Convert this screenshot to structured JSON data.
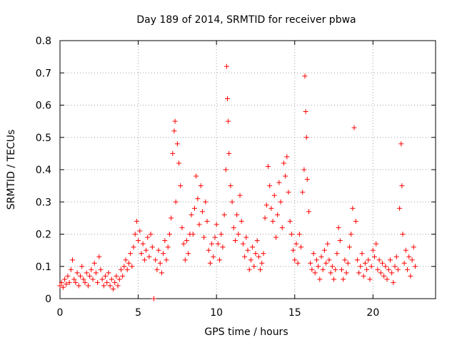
{
  "chart_data": {
    "type": "scatter",
    "title": "Day 189 of 2014, SRMTID for receiver pbwa",
    "xlabel": "GPS time / hours",
    "ylabel": "SRMTID / TECUs",
    "xlim": [
      0,
      24
    ],
    "ylim": [
      0,
      0.8
    ],
    "x_ticks": [
      0,
      5,
      10,
      15,
      20
    ],
    "y_ticks": [
      0,
      0.1,
      0.2,
      0.3,
      0.4,
      0.5,
      0.6,
      0.7,
      0.8
    ],
    "x_tick_labels": [
      "0",
      "5",
      "10",
      "15",
      "20"
    ],
    "y_tick_labels": [
      "0",
      "0.1",
      "0.2",
      "0.3",
      "0.4",
      "0.5",
      "0.6",
      "0.7",
      "0.8"
    ],
    "grid": true,
    "marker": "+",
    "color": "#ff0000",
    "series": [
      {
        "name": "SRMTID",
        "points": [
          [
            0.0,
            0.04
          ],
          [
            0.1,
            0.05
          ],
          [
            0.2,
            0.035
          ],
          [
            0.3,
            0.06
          ],
          [
            0.4,
            0.045
          ],
          [
            0.5,
            0.07
          ],
          [
            0.6,
            0.05
          ],
          [
            0.7,
            0.09
          ],
          [
            0.8,
            0.12
          ],
          [
            0.9,
            0.06
          ],
          [
            1.0,
            0.05
          ],
          [
            1.1,
            0.08
          ],
          [
            1.2,
            0.04
          ],
          [
            1.3,
            0.07
          ],
          [
            1.4,
            0.1
          ],
          [
            1.5,
            0.06
          ],
          [
            1.6,
            0.05
          ],
          [
            1.7,
            0.08
          ],
          [
            1.8,
            0.04
          ],
          [
            1.9,
            0.07
          ],
          [
            2.0,
            0.09
          ],
          [
            2.1,
            0.06
          ],
          [
            2.2,
            0.11
          ],
          [
            2.3,
            0.08
          ],
          [
            2.4,
            0.05
          ],
          [
            2.5,
            0.13
          ],
          [
            2.6,
            0.09
          ],
          [
            2.7,
            0.06
          ],
          [
            2.8,
            0.04
          ],
          [
            2.9,
            0.07
          ],
          [
            3.0,
            0.05
          ],
          [
            3.1,
            0.08
          ],
          [
            3.2,
            0.04
          ],
          [
            3.3,
            0.06
          ],
          [
            3.4,
            0.03
          ],
          [
            3.5,
            0.05
          ],
          [
            3.6,
            0.07
          ],
          [
            3.7,
            0.04
          ],
          [
            3.8,
            0.06
          ],
          [
            3.9,
            0.09
          ],
          [
            4.0,
            0.07
          ],
          [
            4.1,
            0.1
          ],
          [
            4.2,
            0.12
          ],
          [
            4.3,
            0.09
          ],
          [
            4.4,
            0.11
          ],
          [
            4.5,
            0.14
          ],
          [
            4.6,
            0.1
          ],
          [
            4.7,
            0.16
          ],
          [
            4.8,
            0.2
          ],
          [
            4.9,
            0.24
          ],
          [
            5.0,
            0.18
          ],
          [
            5.1,
            0.21
          ],
          [
            5.2,
            0.14
          ],
          [
            5.3,
            0.17
          ],
          [
            5.4,
            0.12
          ],
          [
            5.5,
            0.15
          ],
          [
            5.6,
            0.19
          ],
          [
            5.7,
            0.13
          ],
          [
            5.8,
            0.2
          ],
          [
            5.9,
            0.16
          ],
          [
            6.0,
            0.0
          ],
          [
            6.1,
            0.12
          ],
          [
            6.2,
            0.09
          ],
          [
            6.3,
            0.15
          ],
          [
            6.4,
            0.11
          ],
          [
            6.5,
            0.08
          ],
          [
            6.6,
            0.14
          ],
          [
            6.7,
            0.18
          ],
          [
            6.8,
            0.12
          ],
          [
            6.9,
            0.16
          ],
          [
            7.0,
            0.2
          ],
          [
            7.1,
            0.25
          ],
          [
            7.2,
            0.45
          ],
          [
            7.3,
            0.52
          ],
          [
            7.35,
            0.55
          ],
          [
            7.4,
            0.3
          ],
          [
            7.5,
            0.48
          ],
          [
            7.6,
            0.42
          ],
          [
            7.7,
            0.35
          ],
          [
            7.8,
            0.22
          ],
          [
            7.9,
            0.17
          ],
          [
            8.0,
            0.12
          ],
          [
            8.1,
            0.18
          ],
          [
            8.2,
            0.14
          ],
          [
            8.3,
            0.2
          ],
          [
            8.4,
            0.26
          ],
          [
            8.5,
            0.2
          ],
          [
            8.6,
            0.28
          ],
          [
            8.7,
            0.38
          ],
          [
            8.8,
            0.31
          ],
          [
            8.9,
            0.23
          ],
          [
            9.0,
            0.35
          ],
          [
            9.1,
            0.27
          ],
          [
            9.2,
            0.19
          ],
          [
            9.3,
            0.3
          ],
          [
            9.4,
            0.24
          ],
          [
            9.5,
            0.15
          ],
          [
            9.6,
            0.11
          ],
          [
            9.7,
            0.17
          ],
          [
            9.8,
            0.13
          ],
          [
            9.9,
            0.19
          ],
          [
            10.0,
            0.23
          ],
          [
            10.1,
            0.17
          ],
          [
            10.2,
            0.12
          ],
          [
            10.3,
            0.2
          ],
          [
            10.4,
            0.16
          ],
          [
            10.5,
            0.26
          ],
          [
            10.6,
            0.4
          ],
          [
            10.65,
            0.72
          ],
          [
            10.7,
            0.62
          ],
          [
            10.75,
            0.55
          ],
          [
            10.8,
            0.45
          ],
          [
            10.9,
            0.35
          ],
          [
            11.0,
            0.3
          ],
          [
            11.1,
            0.22
          ],
          [
            11.2,
            0.18
          ],
          [
            11.3,
            0.26
          ],
          [
            11.4,
            0.2
          ],
          [
            11.5,
            0.32
          ],
          [
            11.6,
            0.24
          ],
          [
            11.7,
            0.17
          ],
          [
            11.8,
            0.13
          ],
          [
            11.9,
            0.19
          ],
          [
            12.0,
            0.15
          ],
          [
            12.1,
            0.09
          ],
          [
            12.2,
            0.12
          ],
          [
            12.3,
            0.16
          ],
          [
            12.4,
            0.1
          ],
          [
            12.5,
            0.14
          ],
          [
            12.6,
            0.18
          ],
          [
            12.7,
            0.13
          ],
          [
            12.8,
            0.09
          ],
          [
            12.9,
            0.11
          ],
          [
            13.0,
            0.14
          ],
          [
            13.1,
            0.25
          ],
          [
            13.2,
            0.29
          ],
          [
            13.3,
            0.41
          ],
          [
            13.4,
            0.35
          ],
          [
            13.5,
            0.28
          ],
          [
            13.6,
            0.24
          ],
          [
            13.7,
            0.32
          ],
          [
            13.8,
            0.19
          ],
          [
            13.9,
            0.26
          ],
          [
            14.0,
            0.36
          ],
          [
            14.1,
            0.3
          ],
          [
            14.2,
            0.22
          ],
          [
            14.3,
            0.42
          ],
          [
            14.4,
            0.38
          ],
          [
            14.5,
            0.44
          ],
          [
            14.6,
            0.33
          ],
          [
            14.7,
            0.24
          ],
          [
            14.8,
            0.2
          ],
          [
            14.9,
            0.15
          ],
          [
            15.0,
            0.12
          ],
          [
            15.1,
            0.17
          ],
          [
            15.2,
            0.11
          ],
          [
            15.3,
            0.2
          ],
          [
            15.4,
            0.16
          ],
          [
            15.5,
            0.33
          ],
          [
            15.6,
            0.4
          ],
          [
            15.65,
            0.69
          ],
          [
            15.7,
            0.58
          ],
          [
            15.75,
            0.5
          ],
          [
            15.8,
            0.37
          ],
          [
            15.9,
            0.27
          ],
          [
            16.0,
            0.11
          ],
          [
            16.1,
            0.09
          ],
          [
            16.2,
            0.14
          ],
          [
            16.3,
            0.08
          ],
          [
            16.4,
            0.12
          ],
          [
            16.5,
            0.1
          ],
          [
            16.6,
            0.06
          ],
          [
            16.7,
            0.13
          ],
          [
            16.8,
            0.09
          ],
          [
            16.9,
            0.15
          ],
          [
            17.0,
            0.11
          ],
          [
            17.1,
            0.17
          ],
          [
            17.2,
            0.12
          ],
          [
            17.3,
            0.08
          ],
          [
            17.4,
            0.1
          ],
          [
            17.5,
            0.06
          ],
          [
            17.6,
            0.09
          ],
          [
            17.7,
            0.14
          ],
          [
            17.8,
            0.22
          ],
          [
            17.9,
            0.18
          ],
          [
            18.0,
            0.09
          ],
          [
            18.1,
            0.06
          ],
          [
            18.2,
            0.12
          ],
          [
            18.3,
            0.08
          ],
          [
            18.4,
            0.11
          ],
          [
            18.5,
            0.16
          ],
          [
            18.6,
            0.2
          ],
          [
            18.7,
            0.28
          ],
          [
            18.8,
            0.53
          ],
          [
            18.9,
            0.24
          ],
          [
            19.0,
            0.12
          ],
          [
            19.1,
            0.08
          ],
          [
            19.2,
            0.1
          ],
          [
            19.3,
            0.14
          ],
          [
            19.4,
            0.07
          ],
          [
            19.5,
            0.11
          ],
          [
            19.6,
            0.09
          ],
          [
            19.7,
            0.12
          ],
          [
            19.8,
            0.06
          ],
          [
            19.9,
            0.1
          ],
          [
            20.0,
            0.15
          ],
          [
            20.1,
            0.13
          ],
          [
            20.2,
            0.17
          ],
          [
            20.3,
            0.09
          ],
          [
            20.4,
            0.12
          ],
          [
            20.5,
            0.08
          ],
          [
            20.6,
            0.11
          ],
          [
            20.7,
            0.07
          ],
          [
            20.8,
            0.1
          ],
          [
            20.9,
            0.06
          ],
          [
            21.0,
            0.09
          ],
          [
            21.1,
            0.12
          ],
          [
            21.2,
            0.08
          ],
          [
            21.3,
            0.05
          ],
          [
            21.4,
            0.1
          ],
          [
            21.5,
            0.13
          ],
          [
            21.6,
            0.09
          ],
          [
            21.7,
            0.28
          ],
          [
            21.8,
            0.48
          ],
          [
            21.85,
            0.35
          ],
          [
            21.9,
            0.2
          ],
          [
            22.0,
            0.11
          ],
          [
            22.1,
            0.15
          ],
          [
            22.2,
            0.09
          ],
          [
            22.3,
            0.13
          ],
          [
            22.4,
            0.07
          ],
          [
            22.5,
            0.12
          ],
          [
            22.6,
            0.16
          ],
          [
            22.7,
            0.1
          ]
        ]
      }
    ]
  }
}
